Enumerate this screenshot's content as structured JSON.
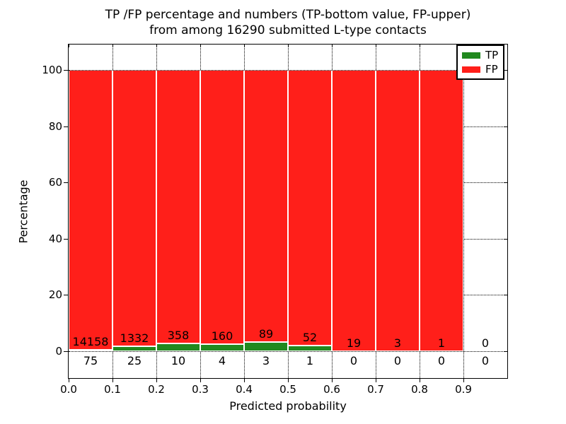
{
  "title": {
    "line1": "TP /FP percentage and numbers (TP-bottom value, FP-upper)",
    "line2": "from among 16290 submitted L-type contacts"
  },
  "axes": {
    "xlabel": "Predicted probability",
    "ylabel": "Percentage",
    "x_tick_labels": [
      "0.0",
      "0.1",
      "0.2",
      "0.3",
      "0.4",
      "0.5",
      "0.6",
      "0.7",
      "0.8",
      "0.9"
    ],
    "y_tick_labels": [
      "0",
      "20",
      "40",
      "60",
      "80",
      "100"
    ],
    "y_tick_values": [
      0,
      20,
      40,
      60,
      80,
      100
    ]
  },
  "legend": {
    "items": [
      {
        "label": "TP",
        "color": "#21891f"
      },
      {
        "label": "FP",
        "color": "#ff1f1a"
      }
    ]
  },
  "colors": {
    "tp": "#21891f",
    "fp": "#ff1f1a",
    "bar_edge": "#ffffff",
    "grid": "#000000",
    "background": "#ffffff",
    "text": "#000000"
  },
  "chart_data": {
    "type": "bar",
    "stacked": true,
    "title": "TP /FP percentage and numbers (TP-bottom value, FP-upper) from among 16290 submitted L-type contacts",
    "xlabel": "Predicted probability",
    "ylabel": "Percentage",
    "xlim": [
      0.0,
      1.0
    ],
    "ylim": [
      -10,
      110
    ],
    "grid": "dotted",
    "legend_position": "upper right",
    "total_contacts": 16290,
    "bin_width": 0.1,
    "bins": [
      {
        "x_start": 0.0,
        "x_end": 0.1,
        "tp": 75,
        "fp": 14158,
        "tp_pct": 0.53,
        "fp_pct": 99.47
      },
      {
        "x_start": 0.1,
        "x_end": 0.2,
        "tp": 25,
        "fp": 1332,
        "tp_pct": 1.84,
        "fp_pct": 98.16
      },
      {
        "x_start": 0.2,
        "x_end": 0.3,
        "tp": 10,
        "fp": 358,
        "tp_pct": 2.72,
        "fp_pct": 97.28
      },
      {
        "x_start": 0.3,
        "x_end": 0.4,
        "tp": 4,
        "fp": 160,
        "tp_pct": 2.44,
        "fp_pct": 97.56
      },
      {
        "x_start": 0.4,
        "x_end": 0.5,
        "tp": 3,
        "fp": 89,
        "tp_pct": 3.26,
        "fp_pct": 96.74
      },
      {
        "x_start": 0.5,
        "x_end": 0.6,
        "tp": 1,
        "fp": 52,
        "tp_pct": 1.89,
        "fp_pct": 98.11
      },
      {
        "x_start": 0.6,
        "x_end": 0.7,
        "tp": 0,
        "fp": 19,
        "tp_pct": 0.0,
        "fp_pct": 100.0
      },
      {
        "x_start": 0.7,
        "x_end": 0.8,
        "tp": 0,
        "fp": 3,
        "tp_pct": 0.0,
        "fp_pct": 100.0
      },
      {
        "x_start": 0.8,
        "x_end": 0.9,
        "tp": 0,
        "fp": 1,
        "tp_pct": 0.0,
        "fp_pct": 100.0
      },
      {
        "x_start": 0.9,
        "x_end": 1.0,
        "tp": 0,
        "fp": 0,
        "tp_pct": 0.0,
        "fp_pct": 0.0
      }
    ]
  }
}
